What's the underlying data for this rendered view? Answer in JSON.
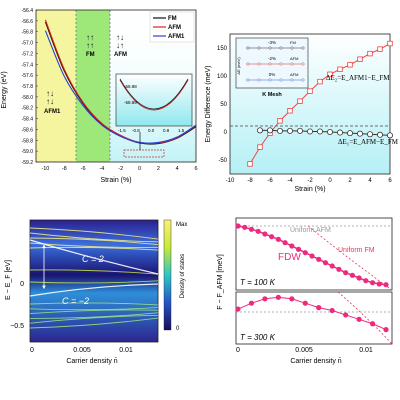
{
  "chart_data": [
    {
      "type": "line",
      "ylabel": "Energy (eV)",
      "xlabel": "Strain (%)",
      "xlim": [
        -11,
        6
      ],
      "ylim": [
        -59.2,
        -56.4
      ],
      "xticks": [
        "-10",
        "-8",
        "-6",
        "-4",
        "-2",
        "0",
        "2",
        "4",
        "6"
      ],
      "yticks": [
        "-56.4",
        "-56.6",
        "-56.8",
        "-57.0",
        "-57.2",
        "-57.4",
        "-57.6",
        "-57.8",
        "-58.0",
        "-58.2",
        "-58.4",
        "-58.6",
        "-58.8",
        "-59.0",
        "-59.2"
      ],
      "legend": "top-right",
      "region_labels": [
        "AFM1",
        "FM",
        "AFM"
      ],
      "series": [
        {
          "name": "FM",
          "color": "#111111",
          "x": [
            -10,
            -8,
            -6,
            -4,
            -2,
            0,
            2,
            4,
            6
          ],
          "y": [
            -56.62,
            -57.52,
            -58.12,
            -58.5,
            -58.72,
            -58.85,
            -58.86,
            -58.76,
            -58.55
          ]
        },
        {
          "name": "AFM",
          "color": "#e02020",
          "x": [
            -10,
            -8,
            -6,
            -4,
            -2,
            0,
            2,
            4,
            6
          ],
          "y": [
            -56.58,
            -57.49,
            -58.1,
            -58.49,
            -58.71,
            -58.84,
            -58.85,
            -58.75,
            -58.53
          ]
        },
        {
          "name": "AFM1",
          "color": "#2a3fd6",
          "x": [
            -10,
            -8,
            -6,
            -4,
            -2,
            0,
            2,
            4,
            6
          ],
          "y": [
            -56.78,
            -57.62,
            -58.16,
            -58.52,
            -58.73,
            -58.84,
            -58.84,
            -58.74,
            -58.52
          ]
        }
      ],
      "inset": {
        "xticks": [
          "-1.5",
          "-0.8",
          "0.0",
          "0.8",
          "1.5"
        ],
        "yticks": [
          "-58.88",
          "-58.89"
        ]
      }
    },
    {
      "type": "line",
      "ylabel": "Energy Difference (meV)",
      "xlabel": "Strain (%)",
      "xlim": [
        -10,
        6
      ],
      "ylim": [
        -75,
        175
      ],
      "xticks": [
        "-10",
        "-8",
        "-6",
        "-4",
        "-2",
        "0",
        "2",
        "4",
        "6"
      ],
      "yticks": [
        "-50",
        "0",
        "50",
        "100",
        "150"
      ],
      "series": [
        {
          "name": "ΔE2=EAFM1-EFM",
          "color": "#ee4444",
          "marker": "square",
          "x": [
            -8,
            -7,
            -6,
            -5,
            -4,
            -3,
            -2,
            -1,
            0,
            1,
            2,
            3,
            4,
            5,
            6
          ],
          "y": [
            -57,
            -27,
            -2,
            20,
            38,
            55,
            73,
            90,
            103,
            112,
            120,
            130,
            140,
            148,
            158
          ]
        },
        {
          "name": "ΔE1=EAFM-EFM",
          "color": "#333333",
          "marker": "circle",
          "x": [
            -7,
            -6,
            -5,
            -4,
            -3,
            -2,
            -1,
            0,
            1,
            2,
            3,
            4,
            5,
            6
          ],
          "y": [
            3,
            3,
            2,
            2,
            2,
            1,
            1,
            0,
            -1,
            -2,
            -3,
            -4,
            -5,
            -6
          ]
        }
      ],
      "annotations": {
        "dE2": "ΔE₂=E_AFM1−E_FM",
        "dE1": "ΔE₁=E_AFM−E_FM"
      },
      "inset": {
        "xlabel": "K Mesh",
        "ylabel": "ΔE (meV)",
        "series": [
          "-3%",
          "-2%",
          "0%"
        ],
        "tags": [
          "FM",
          "AFM",
          "AFM"
        ]
      }
    },
    {
      "type": "heatmap",
      "ylabel": "E − E_F [eV]",
      "xlabel": "Carrier density n̄",
      "xticks": [
        "0",
        "0.005",
        "0.01"
      ],
      "yticks": [
        "0",
        "−0.5"
      ],
      "ylim": [
        -0.6,
        0.15
      ],
      "colorbar": {
        "label": "Density of states",
        "max": "Max",
        "min": "0"
      },
      "band_labels": [
        "C = 2",
        "C = −2"
      ]
    },
    {
      "type": "line",
      "ylabel": "F − F_AFM [meV]",
      "xlabel": "Carrier density n̄",
      "xticks": [
        "0",
        "0.005",
        "0.01"
      ],
      "upper": {
        "label_fdw": "FDW",
        "label_afm": "Uniform AFM",
        "label_fm": "Uniform FM",
        "temp": "T = 100 K",
        "x": [
          0,
          0.0005,
          0.001,
          0.0015,
          0.002,
          0.0025,
          0.003,
          0.0035,
          0.004,
          0.0045,
          0.005,
          0.0055,
          0.006,
          0.0065,
          0.007,
          0.0075,
          0.008,
          0.0085,
          0.009,
          0.0095,
          0.01,
          0.0105,
          0.011
        ],
        "y": [
          0,
          -0.02,
          -0.05,
          -0.08,
          -0.12,
          -0.16,
          -0.2,
          -0.25,
          -0.3,
          -0.35,
          -0.4,
          -0.45,
          -0.5,
          -0.55,
          -0.6,
          -0.65,
          -0.7,
          -0.74,
          -0.78,
          -0.82,
          -0.85,
          -0.87,
          -0.88
        ]
      },
      "lower": {
        "temp": "T = 300 K",
        "x": [
          0,
          0.001,
          0.002,
          0.003,
          0.004,
          0.005,
          0.006,
          0.007,
          0.008,
          0.009,
          0.01,
          0.011
        ],
        "y": [
          0.02,
          0.06,
          0.09,
          0.1,
          0.09,
          0.06,
          0.03,
          0.01,
          -0.02,
          -0.05,
          -0.08,
          -0.12
        ]
      }
    }
  ]
}
